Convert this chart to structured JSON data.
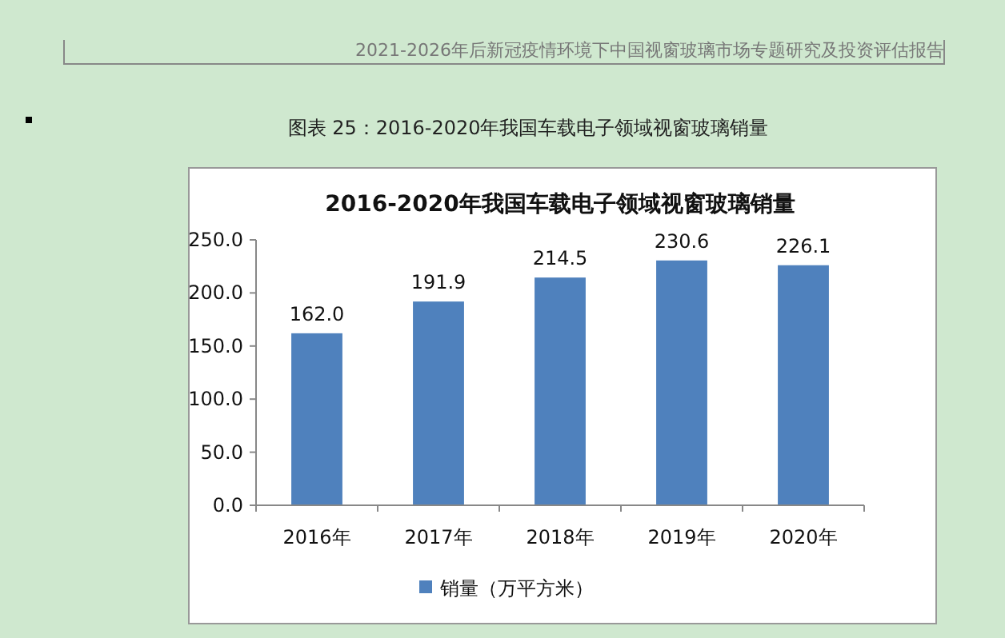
{
  "chart_data": {
    "type": "bar",
    "title": "2016-2020年我国车载电子领域视窗玻璃销量",
    "annotations": [
      "2021-2026年后新冠疫情环境下中国视窗玻璃市场专题研究及投资评估报告",
      "图表  25：2016-2020年我国车载电子领域视窗玻璃销量"
    ],
    "categories": [
      "2016年",
      "2017年",
      "2018年",
      "2019年",
      "2020年"
    ],
    "series": [
      {
        "name": "销量（万平方米）",
        "color": "#4f81bd",
        "values": [
          162.0,
          191.9,
          214.5,
          230.6,
          226.1
        ]
      }
    ],
    "value_labels": [
      "162.0",
      "191.9",
      "214.5",
      "230.6",
      "226.1"
    ],
    "ylim": [
      0,
      250
    ],
    "yticks": [
      {
        "value": 0,
        "label": "0.0"
      },
      {
        "value": 50,
        "label": "50.0"
      },
      {
        "value": 100,
        "label": "100.0"
      },
      {
        "value": 150,
        "label": "150.0"
      },
      {
        "value": 200,
        "label": "200.0"
      },
      {
        "value": 250,
        "label": "250.0"
      }
    ],
    "legend": "bottom"
  }
}
